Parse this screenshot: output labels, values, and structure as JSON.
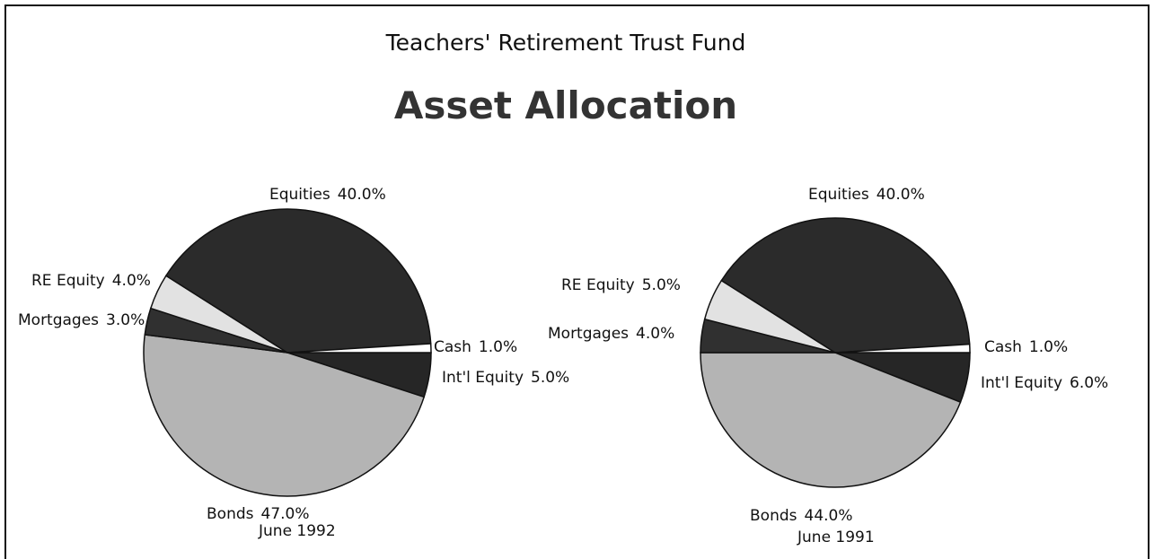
{
  "header": {
    "subtitle": "Teachers' Retirement Trust Fund",
    "title": "Asset Allocation"
  },
  "chart_data": [
    {
      "type": "pie",
      "caption": "June 1992",
      "categories": [
        "Int'l Equity",
        "Bonds",
        "Mortgages",
        "RE Equity",
        "Equities",
        "Cash"
      ],
      "values": [
        5.0,
        47.0,
        3.0,
        4.0,
        40.0,
        1.0
      ],
      "value_labels": [
        "5.0%",
        "47.0%",
        "3.0%",
        "4.0%",
        "40.0%",
        "1.0%"
      ],
      "colors": [
        "#262626",
        "#b4b4b4",
        "#303030",
        "#e2e2e2",
        "#2b2b2b",
        "#ffffff"
      ]
    },
    {
      "type": "pie",
      "caption": "June 1991",
      "categories": [
        "Int'l Equity",
        "Bonds",
        "Mortgages",
        "RE Equity",
        "Equities",
        "Cash"
      ],
      "values": [
        6.0,
        44.0,
        4.0,
        5.0,
        40.0,
        1.0
      ],
      "value_labels": [
        "6.0%",
        "44.0%",
        "4.0%",
        "5.0%",
        "40.0%",
        "1.0%"
      ],
      "colors": [
        "#262626",
        "#b4b4b4",
        "#303030",
        "#e2e2e2",
        "#2b2b2b",
        "#ffffff"
      ]
    }
  ]
}
